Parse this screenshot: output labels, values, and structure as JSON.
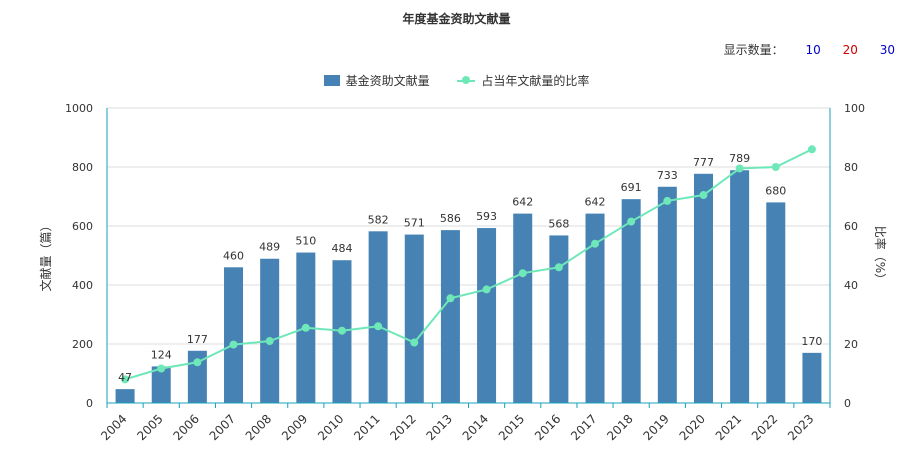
{
  "header": {
    "title": "年度基金资助文献量",
    "show_count_label": "显示数量：",
    "show_count_options": [
      {
        "label": "10",
        "color": "#0000cc"
      },
      {
        "label": "20",
        "color": "#cc0000"
      },
      {
        "label": "30",
        "color": "#0000cc"
      }
    ]
  },
  "chart_data": {
    "type": "bar",
    "title": "年度基金资助文献量",
    "categories": [
      "2004",
      "2005",
      "2006",
      "2007",
      "2008",
      "2009",
      "2010",
      "2011",
      "2012",
      "2013",
      "2014",
      "2015",
      "2016",
      "2017",
      "2018",
      "2019",
      "2020",
      "2021",
      "2022",
      "2023"
    ],
    "series": [
      {
        "name": "基金资助文献量",
        "type": "bar",
        "axis": "left",
        "color": "#4682b4",
        "values": [
          47,
          124,
          177,
          460,
          489,
          510,
          484,
          582,
          571,
          586,
          593,
          642,
          568,
          642,
          691,
          733,
          777,
          789,
          680,
          170
        ]
      },
      {
        "name": "占当年文献量的比率",
        "type": "line",
        "axis": "right",
        "color": "#6ee8b8",
        "values": [
          8,
          11.7,
          13.8,
          19.8,
          21,
          25.5,
          24.5,
          26,
          20.5,
          35.5,
          38.5,
          44,
          46,
          54,
          61.5,
          68.5,
          70.5,
          79.5,
          80,
          86
        ]
      }
    ],
    "ylabel_left": "文献量（篇）",
    "ylabel_right": "比率（%）",
    "ylim_left": [
      0,
      1000
    ],
    "ylim_right": [
      0,
      100
    ],
    "yticks_left": [
      0,
      200,
      400,
      600,
      800,
      1000
    ],
    "yticks_right": [
      0,
      20,
      40,
      60,
      80,
      100
    ],
    "grid": true,
    "legend_position": "top-center",
    "data_labels": "bar values shown above bars"
  }
}
